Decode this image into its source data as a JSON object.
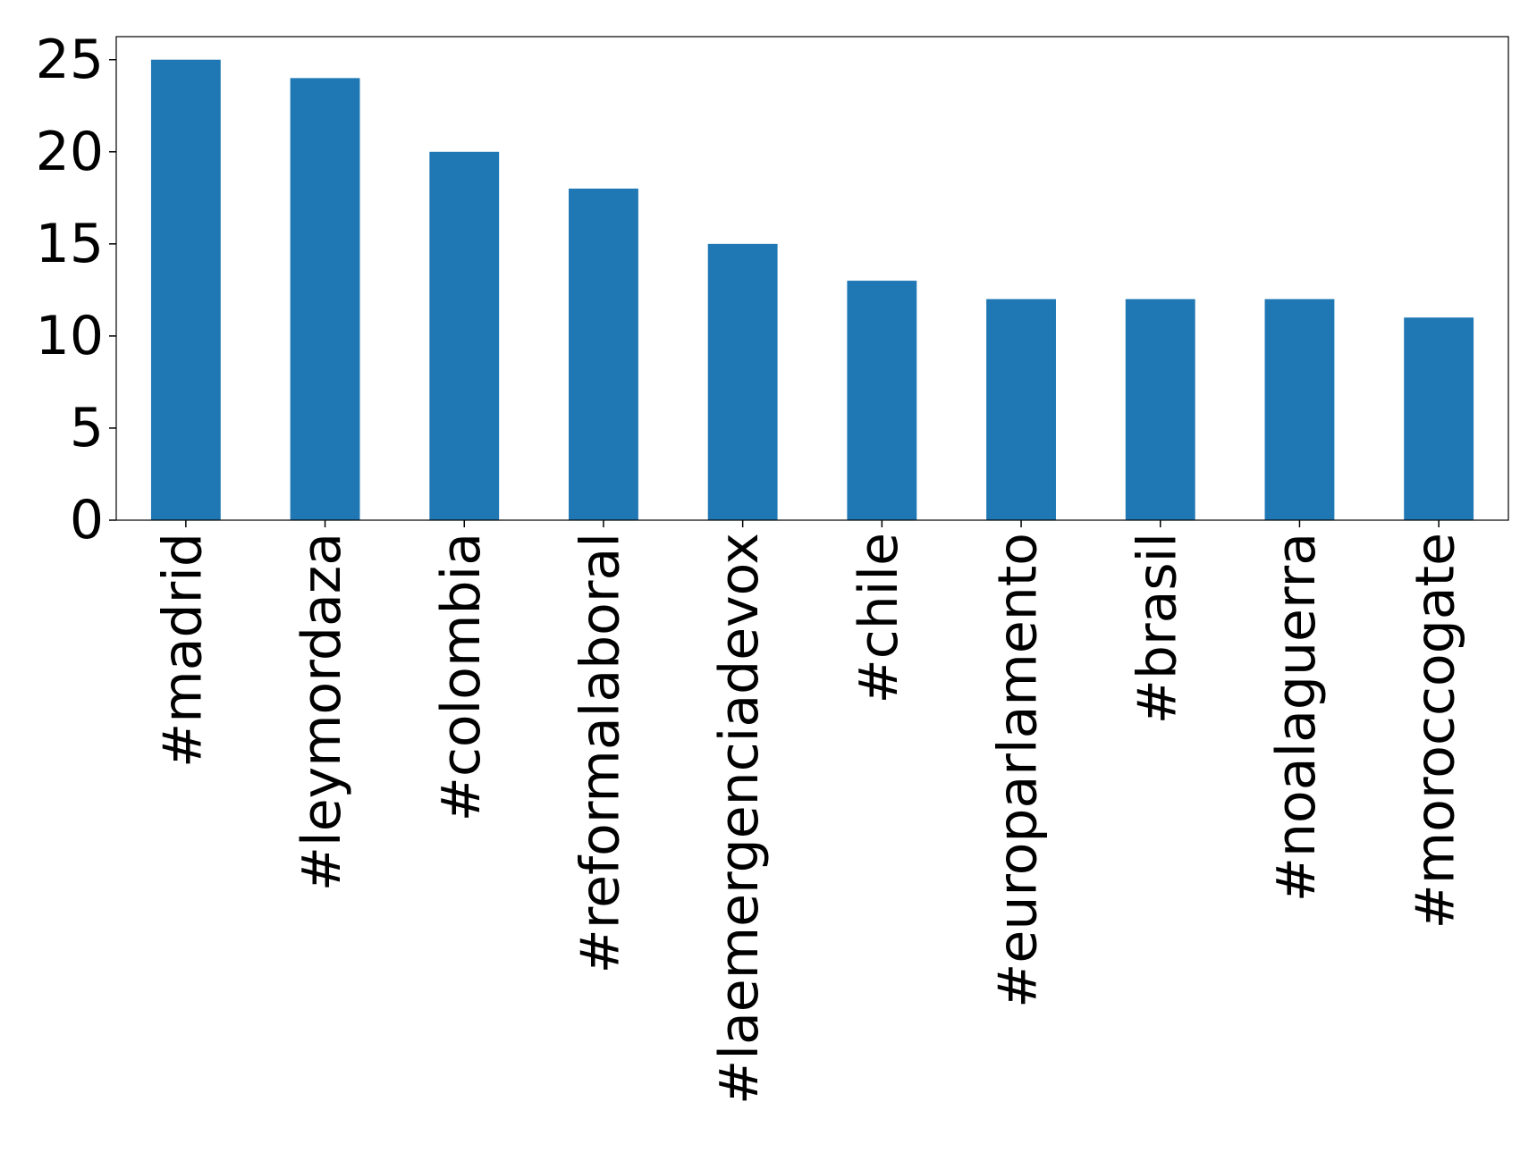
{
  "chart_data": {
    "type": "bar",
    "categories": [
      "#madrid",
      "#leymordaza",
      "#colombia",
      "#reformalaboral",
      "#laemergenciadevox",
      "#chile",
      "#europarlamento",
      "#brasil",
      "#noalaguerra",
      "#moroccogate"
    ],
    "values": [
      25,
      24,
      20,
      18,
      15,
      13,
      12,
      12,
      12,
      11
    ],
    "color": "#1f77b4",
    "ylim": [
      0,
      26.25
    ],
    "yticks": [
      0,
      5,
      10,
      15,
      20,
      25
    ],
    "grid": false
  }
}
